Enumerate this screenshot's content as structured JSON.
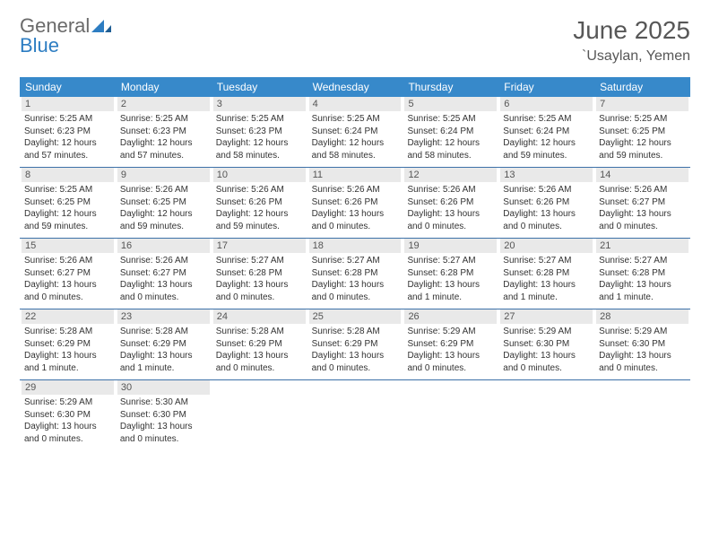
{
  "brand": {
    "part1": "General",
    "part2": "Blue"
  },
  "title": "June 2025",
  "location": "`Usaylan, Yemen",
  "colors": {
    "header_bg": "#3789ca",
    "header_text": "#ffffff",
    "week_border": "#3d71a8",
    "daynum_bg": "#e9e9e9",
    "text": "#333333",
    "brand_gray": "#6a6a6a",
    "brand_blue": "#2d7dc2"
  },
  "dayHeaders": [
    "Sunday",
    "Monday",
    "Tuesday",
    "Wednesday",
    "Thursday",
    "Friday",
    "Saturday"
  ],
  "weeks": [
    [
      {
        "n": "1",
        "sr": "Sunrise: 5:25 AM",
        "ss": "Sunset: 6:23 PM",
        "dl": "Daylight: 12 hours and 57 minutes."
      },
      {
        "n": "2",
        "sr": "Sunrise: 5:25 AM",
        "ss": "Sunset: 6:23 PM",
        "dl": "Daylight: 12 hours and 57 minutes."
      },
      {
        "n": "3",
        "sr": "Sunrise: 5:25 AM",
        "ss": "Sunset: 6:23 PM",
        "dl": "Daylight: 12 hours and 58 minutes."
      },
      {
        "n": "4",
        "sr": "Sunrise: 5:25 AM",
        "ss": "Sunset: 6:24 PM",
        "dl": "Daylight: 12 hours and 58 minutes."
      },
      {
        "n": "5",
        "sr": "Sunrise: 5:25 AM",
        "ss": "Sunset: 6:24 PM",
        "dl": "Daylight: 12 hours and 58 minutes."
      },
      {
        "n": "6",
        "sr": "Sunrise: 5:25 AM",
        "ss": "Sunset: 6:24 PM",
        "dl": "Daylight: 12 hours and 59 minutes."
      },
      {
        "n": "7",
        "sr": "Sunrise: 5:25 AM",
        "ss": "Sunset: 6:25 PM",
        "dl": "Daylight: 12 hours and 59 minutes."
      }
    ],
    [
      {
        "n": "8",
        "sr": "Sunrise: 5:25 AM",
        "ss": "Sunset: 6:25 PM",
        "dl": "Daylight: 12 hours and 59 minutes."
      },
      {
        "n": "9",
        "sr": "Sunrise: 5:26 AM",
        "ss": "Sunset: 6:25 PM",
        "dl": "Daylight: 12 hours and 59 minutes."
      },
      {
        "n": "10",
        "sr": "Sunrise: 5:26 AM",
        "ss": "Sunset: 6:26 PM",
        "dl": "Daylight: 12 hours and 59 minutes."
      },
      {
        "n": "11",
        "sr": "Sunrise: 5:26 AM",
        "ss": "Sunset: 6:26 PM",
        "dl": "Daylight: 13 hours and 0 minutes."
      },
      {
        "n": "12",
        "sr": "Sunrise: 5:26 AM",
        "ss": "Sunset: 6:26 PM",
        "dl": "Daylight: 13 hours and 0 minutes."
      },
      {
        "n": "13",
        "sr": "Sunrise: 5:26 AM",
        "ss": "Sunset: 6:26 PM",
        "dl": "Daylight: 13 hours and 0 minutes."
      },
      {
        "n": "14",
        "sr": "Sunrise: 5:26 AM",
        "ss": "Sunset: 6:27 PM",
        "dl": "Daylight: 13 hours and 0 minutes."
      }
    ],
    [
      {
        "n": "15",
        "sr": "Sunrise: 5:26 AM",
        "ss": "Sunset: 6:27 PM",
        "dl": "Daylight: 13 hours and 0 minutes."
      },
      {
        "n": "16",
        "sr": "Sunrise: 5:26 AM",
        "ss": "Sunset: 6:27 PM",
        "dl": "Daylight: 13 hours and 0 minutes."
      },
      {
        "n": "17",
        "sr": "Sunrise: 5:27 AM",
        "ss": "Sunset: 6:28 PM",
        "dl": "Daylight: 13 hours and 0 minutes."
      },
      {
        "n": "18",
        "sr": "Sunrise: 5:27 AM",
        "ss": "Sunset: 6:28 PM",
        "dl": "Daylight: 13 hours and 0 minutes."
      },
      {
        "n": "19",
        "sr": "Sunrise: 5:27 AM",
        "ss": "Sunset: 6:28 PM",
        "dl": "Daylight: 13 hours and 1 minute."
      },
      {
        "n": "20",
        "sr": "Sunrise: 5:27 AM",
        "ss": "Sunset: 6:28 PM",
        "dl": "Daylight: 13 hours and 1 minute."
      },
      {
        "n": "21",
        "sr": "Sunrise: 5:27 AM",
        "ss": "Sunset: 6:28 PM",
        "dl": "Daylight: 13 hours and 1 minute."
      }
    ],
    [
      {
        "n": "22",
        "sr": "Sunrise: 5:28 AM",
        "ss": "Sunset: 6:29 PM",
        "dl": "Daylight: 13 hours and 1 minute."
      },
      {
        "n": "23",
        "sr": "Sunrise: 5:28 AM",
        "ss": "Sunset: 6:29 PM",
        "dl": "Daylight: 13 hours and 1 minute."
      },
      {
        "n": "24",
        "sr": "Sunrise: 5:28 AM",
        "ss": "Sunset: 6:29 PM",
        "dl": "Daylight: 13 hours and 0 minutes."
      },
      {
        "n": "25",
        "sr": "Sunrise: 5:28 AM",
        "ss": "Sunset: 6:29 PM",
        "dl": "Daylight: 13 hours and 0 minutes."
      },
      {
        "n": "26",
        "sr": "Sunrise: 5:29 AM",
        "ss": "Sunset: 6:29 PM",
        "dl": "Daylight: 13 hours and 0 minutes."
      },
      {
        "n": "27",
        "sr": "Sunrise: 5:29 AM",
        "ss": "Sunset: 6:30 PM",
        "dl": "Daylight: 13 hours and 0 minutes."
      },
      {
        "n": "28",
        "sr": "Sunrise: 5:29 AM",
        "ss": "Sunset: 6:30 PM",
        "dl": "Daylight: 13 hours and 0 minutes."
      }
    ],
    [
      {
        "n": "29",
        "sr": "Sunrise: 5:29 AM",
        "ss": "Sunset: 6:30 PM",
        "dl": "Daylight: 13 hours and 0 minutes."
      },
      {
        "n": "30",
        "sr": "Sunrise: 5:30 AM",
        "ss": "Sunset: 6:30 PM",
        "dl": "Daylight: 13 hours and 0 minutes."
      },
      {
        "empty": true
      },
      {
        "empty": true
      },
      {
        "empty": true
      },
      {
        "empty": true
      },
      {
        "empty": true
      }
    ]
  ]
}
